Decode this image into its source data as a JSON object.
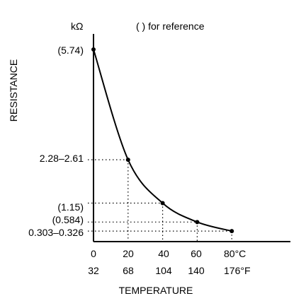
{
  "chart_data": {
    "type": "line",
    "unit_label": "kΩ",
    "note": "(  ) for reference",
    "ylabel": "RESISTANCE",
    "xlabel": "TEMPERATURE",
    "x_ticks_c": [
      "0",
      "20",
      "40",
      "60",
      "80°C"
    ],
    "x_ticks_f": [
      "32",
      "68",
      "104",
      "140",
      "176°F"
    ],
    "y_labels": [
      "(5.74)",
      "2.28–2.61",
      "(1.15)",
      "(0.584)",
      "0.303–0.326"
    ],
    "xlim": [
      0,
      110
    ],
    "ylim": [
      0,
      5.74
    ],
    "points": [
      {
        "x": 0,
        "y": 5.74
      },
      {
        "x": 20,
        "y": 2.445
      },
      {
        "x": 40,
        "y": 1.15
      },
      {
        "x": 60,
        "y": 0.584
      },
      {
        "x": 80,
        "y": 0.3145
      }
    ]
  }
}
